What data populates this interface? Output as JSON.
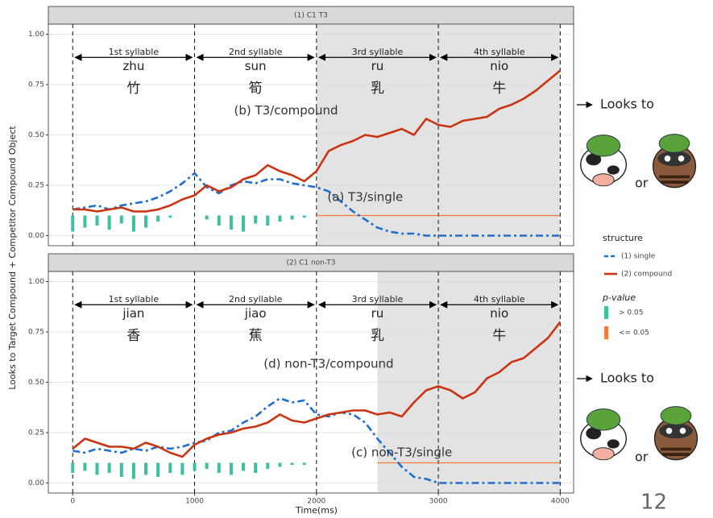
{
  "chart_data": [
    {
      "type": "line",
      "strip_title": "(1) C1 T3",
      "x": [
        0,
        100,
        200,
        300,
        400,
        500,
        600,
        700,
        800,
        900,
        1000,
        1100,
        1200,
        1300,
        1400,
        1500,
        1600,
        1700,
        1800,
        1900,
        2000,
        2100,
        2200,
        2300,
        2400,
        2500,
        2600,
        2700,
        2800,
        2900,
        3000,
        3100,
        3200,
        3300,
        3400,
        3500,
        3600,
        3700,
        3800,
        3900,
        4000
      ],
      "series": [
        {
          "name": "(1) single",
          "color": "#1f6fd1",
          "style": "dashed",
          "values": [
            0.13,
            0.14,
            0.15,
            0.13,
            0.15,
            0.16,
            0.17,
            0.19,
            0.22,
            0.26,
            0.31,
            0.24,
            0.21,
            0.25,
            0.27,
            0.26,
            0.28,
            0.28,
            0.26,
            0.25,
            0.24,
            0.22,
            0.17,
            0.12,
            0.08,
            0.04,
            0.02,
            0.01,
            0.01,
            0,
            0,
            0,
            0,
            0,
            0,
            0,
            0,
            0,
            0,
            0,
            0
          ]
        },
        {
          "name": "(2) compound",
          "color": "#cc3311",
          "style": "solid",
          "values": [
            0.13,
            0.13,
            0.12,
            0.13,
            0.14,
            0.12,
            0.12,
            0.13,
            0.15,
            0.18,
            0.2,
            0.25,
            0.22,
            0.24,
            0.28,
            0.3,
            0.35,
            0.32,
            0.3,
            0.27,
            0.32,
            0.42,
            0.45,
            0.47,
            0.5,
            0.49,
            0.51,
            0.53,
            0.5,
            0.58,
            0.55,
            0.54,
            0.57,
            0.58,
            0.59,
            0.63,
            0.65,
            0.68,
            0.72,
            0.77,
            0.82
          ]
        }
      ],
      "pvalue": {
        "baseline": 0.1,
        "color": "#3cc0a0",
        "x": [
          0,
          100,
          200,
          300,
          400,
          500,
          600,
          700,
          800,
          900,
          1000,
          1100,
          1200,
          1300,
          1400,
          1500,
          1600,
          1700,
          1800,
          1900
        ],
        "values": [
          0.02,
          0.04,
          0.05,
          0.03,
          0.06,
          0.02,
          0.04,
          0.07,
          0.09,
          null,
          null,
          0.08,
          0.05,
          0.03,
          0.02,
          0.06,
          0.05,
          0.07,
          0.08,
          0.09
        ]
      },
      "significant": {
        "color": "#f47a3a",
        "from": 2000,
        "to": 4000,
        "y": 0.1
      },
      "shade": [
        2000,
        4000
      ],
      "syllables": [
        {
          "label": "1st syllable",
          "pinyin": "zhu",
          "char": "竹"
        },
        {
          "label": "2nd syllable",
          "pinyin": "sun",
          "char": "筍"
        },
        {
          "label": "3rd syllable",
          "pinyin": "ru",
          "char": "乳"
        },
        {
          "label": "4th syllable",
          "pinyin": "nio",
          "char": "牛"
        }
      ],
      "annotations": [
        "(b) T3/compound",
        "(a) T3/single"
      ],
      "looks_to": "Looks to",
      "or": "or",
      "xlim": [
        -200,
        4110
      ],
      "ylim": [
        -0.05,
        1.05
      ],
      "xticks": [
        0,
        1000,
        2000,
        3000,
        4000
      ],
      "yticks": [
        {
          "value": 0,
          "label": "0.00"
        },
        {
          "value": 0.25,
          "label": "0.25"
        },
        {
          "value": 0.5,
          "label": "0.50"
        },
        {
          "value": 0.75,
          "label": "0.75"
        },
        {
          "value": 1,
          "label": "1.00"
        }
      ]
    },
    {
      "type": "line",
      "strip_title": "(2) C1 non-T3",
      "x": [
        0,
        100,
        200,
        300,
        400,
        500,
        600,
        700,
        800,
        900,
        1000,
        1100,
        1200,
        1300,
        1400,
        1500,
        1600,
        1700,
        1800,
        1900,
        2000,
        2100,
        2200,
        2300,
        2400,
        2500,
        2600,
        2700,
        2800,
        2900,
        3000,
        3100,
        3200,
        3300,
        3400,
        3500,
        3600,
        3700,
        3800,
        3900,
        4000
      ],
      "series": [
        {
          "name": "(1) single",
          "color": "#1f6fd1",
          "style": "dashed",
          "values": [
            0.16,
            0.15,
            0.17,
            0.16,
            0.15,
            0.17,
            0.16,
            0.18,
            0.17,
            0.18,
            0.2,
            0.21,
            0.25,
            0.26,
            0.3,
            0.33,
            0.38,
            0.42,
            0.4,
            0.41,
            0.34,
            0.33,
            0.35,
            0.34,
            0.3,
            0.22,
            0.15,
            0.08,
            0.03,
            0.02,
            0,
            0,
            0,
            0,
            0,
            0,
            0,
            0,
            0,
            0,
            0
          ]
        },
        {
          "name": "(2) compound",
          "color": "#cc3311",
          "style": "solid",
          "values": [
            0.17,
            0.22,
            0.2,
            0.18,
            0.18,
            0.17,
            0.2,
            0.18,
            0.15,
            0.13,
            0.19,
            0.22,
            0.24,
            0.25,
            0.27,
            0.28,
            0.3,
            0.34,
            0.31,
            0.3,
            0.32,
            0.34,
            0.35,
            0.36,
            0.36,
            0.34,
            0.35,
            0.33,
            0.4,
            0.46,
            0.48,
            0.46,
            0.42,
            0.45,
            0.52,
            0.55,
            0.6,
            0.62,
            0.67,
            0.72,
            0.8
          ]
        }
      ],
      "pvalue": {
        "baseline": 0.1,
        "color": "#3cc0a0",
        "x": [
          0,
          100,
          200,
          300,
          400,
          500,
          600,
          700,
          800,
          900,
          1000,
          1100,
          1200,
          1300,
          1400,
          1500,
          1600,
          1700,
          1800,
          1900
        ],
        "values": [
          0.05,
          0.06,
          0.04,
          0.05,
          0.03,
          0.02,
          0.04,
          0.03,
          0.05,
          0.04,
          0.06,
          0.07,
          0.05,
          0.04,
          0.06,
          0.05,
          0.07,
          0.08,
          0.09,
          0.09
        ]
      },
      "significant": {
        "color": "#f47a3a",
        "from": 2500,
        "to": 4000,
        "y": 0.1
      },
      "shade": [
        2500,
        4000
      ],
      "syllables": [
        {
          "label": "1st syllable",
          "pinyin": "jian",
          "char": "香"
        },
        {
          "label": "2nd syllable",
          "pinyin": "jiao",
          "char": "蕉"
        },
        {
          "label": "3rd syllable",
          "pinyin": "ru",
          "char": "乳"
        },
        {
          "label": "4th syllable",
          "pinyin": "nio",
          "char": "牛"
        }
      ],
      "annotations": [
        "(d) non-T3/compound",
        "(c) non-T3/single"
      ],
      "looks_to": "Looks to",
      "or": "or",
      "xlim": [
        -200,
        4110
      ],
      "ylim": [
        -0.05,
        1.05
      ],
      "xticks": [
        0,
        1000,
        2000,
        3000,
        4000
      ],
      "yticks": [
        {
          "value": 0,
          "label": "0.00"
        },
        {
          "value": 0.25,
          "label": "0.25"
        },
        {
          "value": 0.5,
          "label": "0.50"
        },
        {
          "value": 0.75,
          "label": "0.75"
        },
        {
          "value": 1,
          "label": "1.00"
        }
      ]
    }
  ],
  "ylabel": "Looks to Target Compound + Competitor Compound Object",
  "xlabel": "Time(ms)",
  "legend": {
    "title": "structure"
  },
  "pvalue_legend": {
    "title": "p-value",
    "items": [
      {
        "label": "> 0.05",
        "color": "#3cc0a0"
      },
      {
        "label": "<= 0.05",
        "color": "#f47a3a"
      }
    ]
  },
  "page_number": "12"
}
